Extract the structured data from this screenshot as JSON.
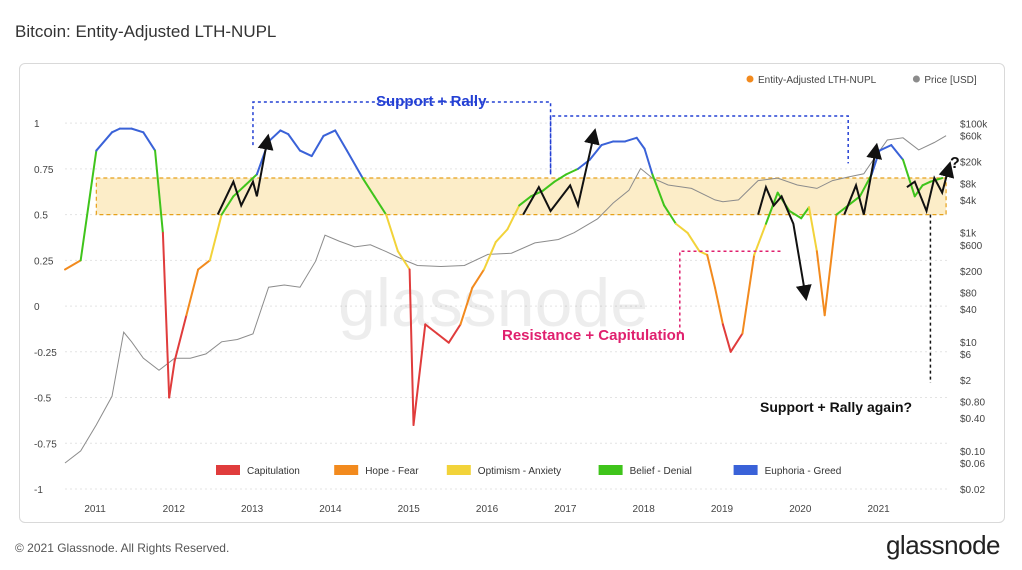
{
  "page": {
    "title": "Bitcoin: Entity-Adjusted LTH-NUPL",
    "copyright": "© 2021 Glassnode. All Rights Reserved.",
    "logo": "glassnode",
    "watermark": "glassnode"
  },
  "colors": {
    "capitulation": "#e03c3c",
    "hope_fear": "#f28a1e",
    "optimism_anxiety": "#f2d33a",
    "belief_denial": "#3fc41b",
    "euphoria_greed": "#3a62d8",
    "price": "#8c8c8c",
    "support_annotation": "#2440d4",
    "resistance_annotation": "#e0206e",
    "band_fill": "#fbe7b5",
    "band_border": "#e6a11a"
  },
  "chart_data": {
    "type": "line",
    "title": "Bitcoin: Entity-Adjusted LTH-NUPL",
    "legend_top": [
      {
        "name": "Entity-Adjusted LTH-NUPL",
        "color": "#f28a1e"
      },
      {
        "name": "Price [USD]",
        "color": "#8c8c8c"
      }
    ],
    "legend_bottom": [
      {
        "name": "Capitulation",
        "color": "#e03c3c"
      },
      {
        "name": "Hope - Fear",
        "color": "#f28a1e"
      },
      {
        "name": "Optimism - Anxiety",
        "color": "#f2d33a"
      },
      {
        "name": "Belief - Denial",
        "color": "#3fc41b"
      },
      {
        "name": "Euphoria - Greed",
        "color": "#3a62d8"
      }
    ],
    "x_ticks": [
      "2011",
      "2012",
      "2013",
      "2014",
      "2015",
      "2016",
      "2017",
      "2018",
      "2019",
      "2020",
      "2021"
    ],
    "x_range": [
      2010.6,
      2021.9
    ],
    "y_left_ticks": [
      "1",
      "0.75",
      "0.5",
      "0.25",
      "0",
      "-0.25",
      "-0.5",
      "-0.75",
      "-1"
    ],
    "y_left_range": [
      -1,
      1.05
    ],
    "y_right_ticks": [
      "$100k",
      "$60k",
      "$20k",
      "$8k",
      "$4k",
      "$1k",
      "$600",
      "$200",
      "$80",
      "$40",
      "$10",
      "$6",
      "$2",
      "$0.80",
      "$0.40",
      "$0.10",
      "$0.06",
      "$0.02"
    ],
    "y_right_scale": "log",
    "band": {
      "from": 0.5,
      "to": 0.7
    },
    "series": [
      {
        "name": "Entity-Adjusted LTH-NUPL",
        "x": [
          2010.6,
          2010.8,
          2011.0,
          2011.2,
          2011.3,
          2011.45,
          2011.6,
          2011.75,
          2011.85,
          2011.93,
          2012.0,
          2012.15,
          2012.3,
          2012.45,
          2012.6,
          2012.75,
          2012.9,
          2013.05,
          2013.2,
          2013.35,
          2013.45,
          2013.6,
          2013.75,
          2013.9,
          2014.05,
          2014.2,
          2014.4,
          2014.55,
          2014.7,
          2014.85,
          2015.0,
          2015.05,
          2015.2,
          2015.35,
          2015.5,
          2015.65,
          2015.8,
          2015.95,
          2016.1,
          2016.25,
          2016.4,
          2016.55,
          2016.7,
          2016.85,
          2017.0,
          2017.15,
          2017.3,
          2017.45,
          2017.6,
          2017.75,
          2017.9,
          2018.0,
          2018.1,
          2018.25,
          2018.4,
          2018.55,
          2018.7,
          2018.8,
          2018.9,
          2019.0,
          2019.1,
          2019.25,
          2019.4,
          2019.55,
          2019.7,
          2019.85,
          2020.0,
          2020.1,
          2020.2,
          2020.3,
          2020.45,
          2020.6,
          2020.75,
          2020.9,
          2021.0,
          2021.15,
          2021.3,
          2021.45,
          2021.55,
          2021.65,
          2021.8
        ],
        "y": [
          0.2,
          0.25,
          0.85,
          0.95,
          0.97,
          0.97,
          0.95,
          0.85,
          0.4,
          -0.5,
          -0.3,
          -0.05,
          0.2,
          0.25,
          0.5,
          0.6,
          0.66,
          0.72,
          0.9,
          0.96,
          0.94,
          0.85,
          0.82,
          0.93,
          0.96,
          0.85,
          0.7,
          0.6,
          0.5,
          0.3,
          0.2,
          -0.65,
          -0.1,
          -0.15,
          -0.2,
          -0.1,
          0.1,
          0.2,
          0.35,
          0.42,
          0.55,
          0.6,
          0.63,
          0.68,
          0.72,
          0.75,
          0.8,
          0.88,
          0.9,
          0.9,
          0.92,
          0.86,
          0.72,
          0.55,
          0.45,
          0.4,
          0.3,
          0.28,
          0.1,
          -0.1,
          -0.25,
          -0.15,
          0.28,
          0.45,
          0.62,
          0.52,
          0.48,
          0.54,
          0.3,
          -0.05,
          0.5,
          0.55,
          0.6,
          0.72,
          0.85,
          0.88,
          0.8,
          0.6,
          0.66,
          0.68,
          0.7
        ]
      },
      {
        "name": "Price [USD]",
        "x": [
          2010.6,
          2010.8,
          2011.0,
          2011.2,
          2011.35,
          2011.45,
          2011.6,
          2011.8,
          2012.0,
          2012.2,
          2012.4,
          2012.6,
          2012.8,
          2013.0,
          2013.2,
          2013.4,
          2013.6,
          2013.8,
          2013.92,
          2014.1,
          2014.3,
          2014.5,
          2014.7,
          2014.9,
          2015.1,
          2015.4,
          2015.7,
          2016.0,
          2016.3,
          2016.6,
          2016.9,
          2017.1,
          2017.4,
          2017.6,
          2017.8,
          2017.95,
          2018.1,
          2018.3,
          2018.6,
          2018.9,
          2019.0,
          2019.2,
          2019.45,
          2019.7,
          2019.95,
          2020.2,
          2020.4,
          2020.6,
          2020.8,
          2020.95,
          2021.1,
          2021.3,
          2021.5,
          2021.7,
          2021.85
        ],
        "y": [
          0.06,
          0.1,
          0.3,
          1,
          15,
          10,
          5,
          3,
          5,
          5,
          6,
          10,
          11,
          14,
          100,
          110,
          100,
          300,
          900,
          700,
          550,
          600,
          450,
          330,
          250,
          240,
          250,
          400,
          420,
          650,
          750,
          1000,
          1800,
          3500,
          6000,
          15000,
          10000,
          7500,
          6500,
          4000,
          3700,
          4000,
          9000,
          10000,
          7500,
          6500,
          9000,
          10500,
          12000,
          25000,
          50000,
          55000,
          33000,
          45000,
          60000
        ]
      }
    ],
    "annotations": [
      {
        "text": "Support + Rally",
        "color": "#2440d4"
      },
      {
        "text": "Resistance + Capitulation",
        "color": "#e0206e"
      },
      {
        "text": "Support + Rally again?",
        "color": "#111111"
      },
      {
        "text": "?",
        "color": "#111111"
      }
    ]
  }
}
